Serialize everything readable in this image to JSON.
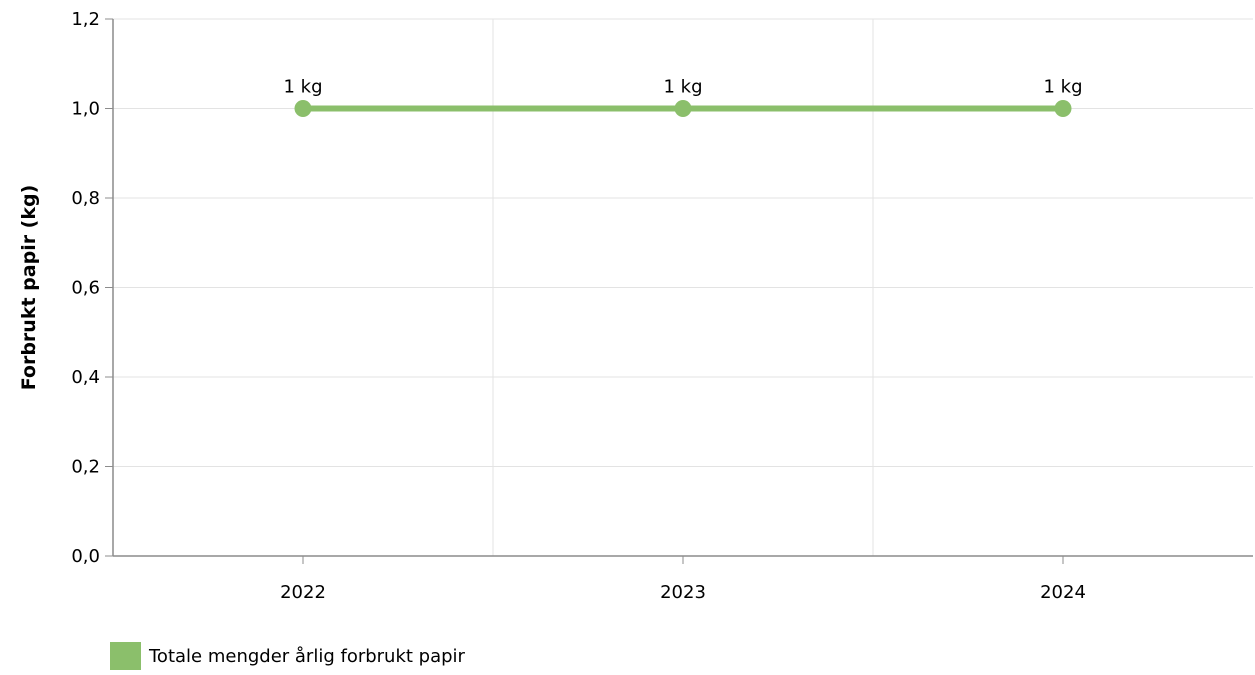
{
  "chart_data": {
    "type": "line",
    "categories": [
      "2022",
      "2023",
      "2024"
    ],
    "series": [
      {
        "name": "Totale mengder årlig forbrukt papir",
        "values": [
          1.0,
          1.0,
          1.0
        ],
        "data_labels": [
          "1 kg",
          "1 kg",
          "1 kg"
        ],
        "color": "#8bbf6b"
      }
    ],
    "ylabel": "Forbrukt papir (kg)",
    "xlabel": "",
    "ylim": [
      0,
      1.2
    ],
    "yticks": [
      0,
      0.2,
      0.4,
      0.6,
      0.8,
      1.0,
      1.2
    ],
    "ytick_labels": [
      "0,0",
      "0,2",
      "0,4",
      "0,6",
      "0,8",
      "1,0",
      "1,2"
    ],
    "grid": true,
    "legend_position": "bottom-left"
  }
}
